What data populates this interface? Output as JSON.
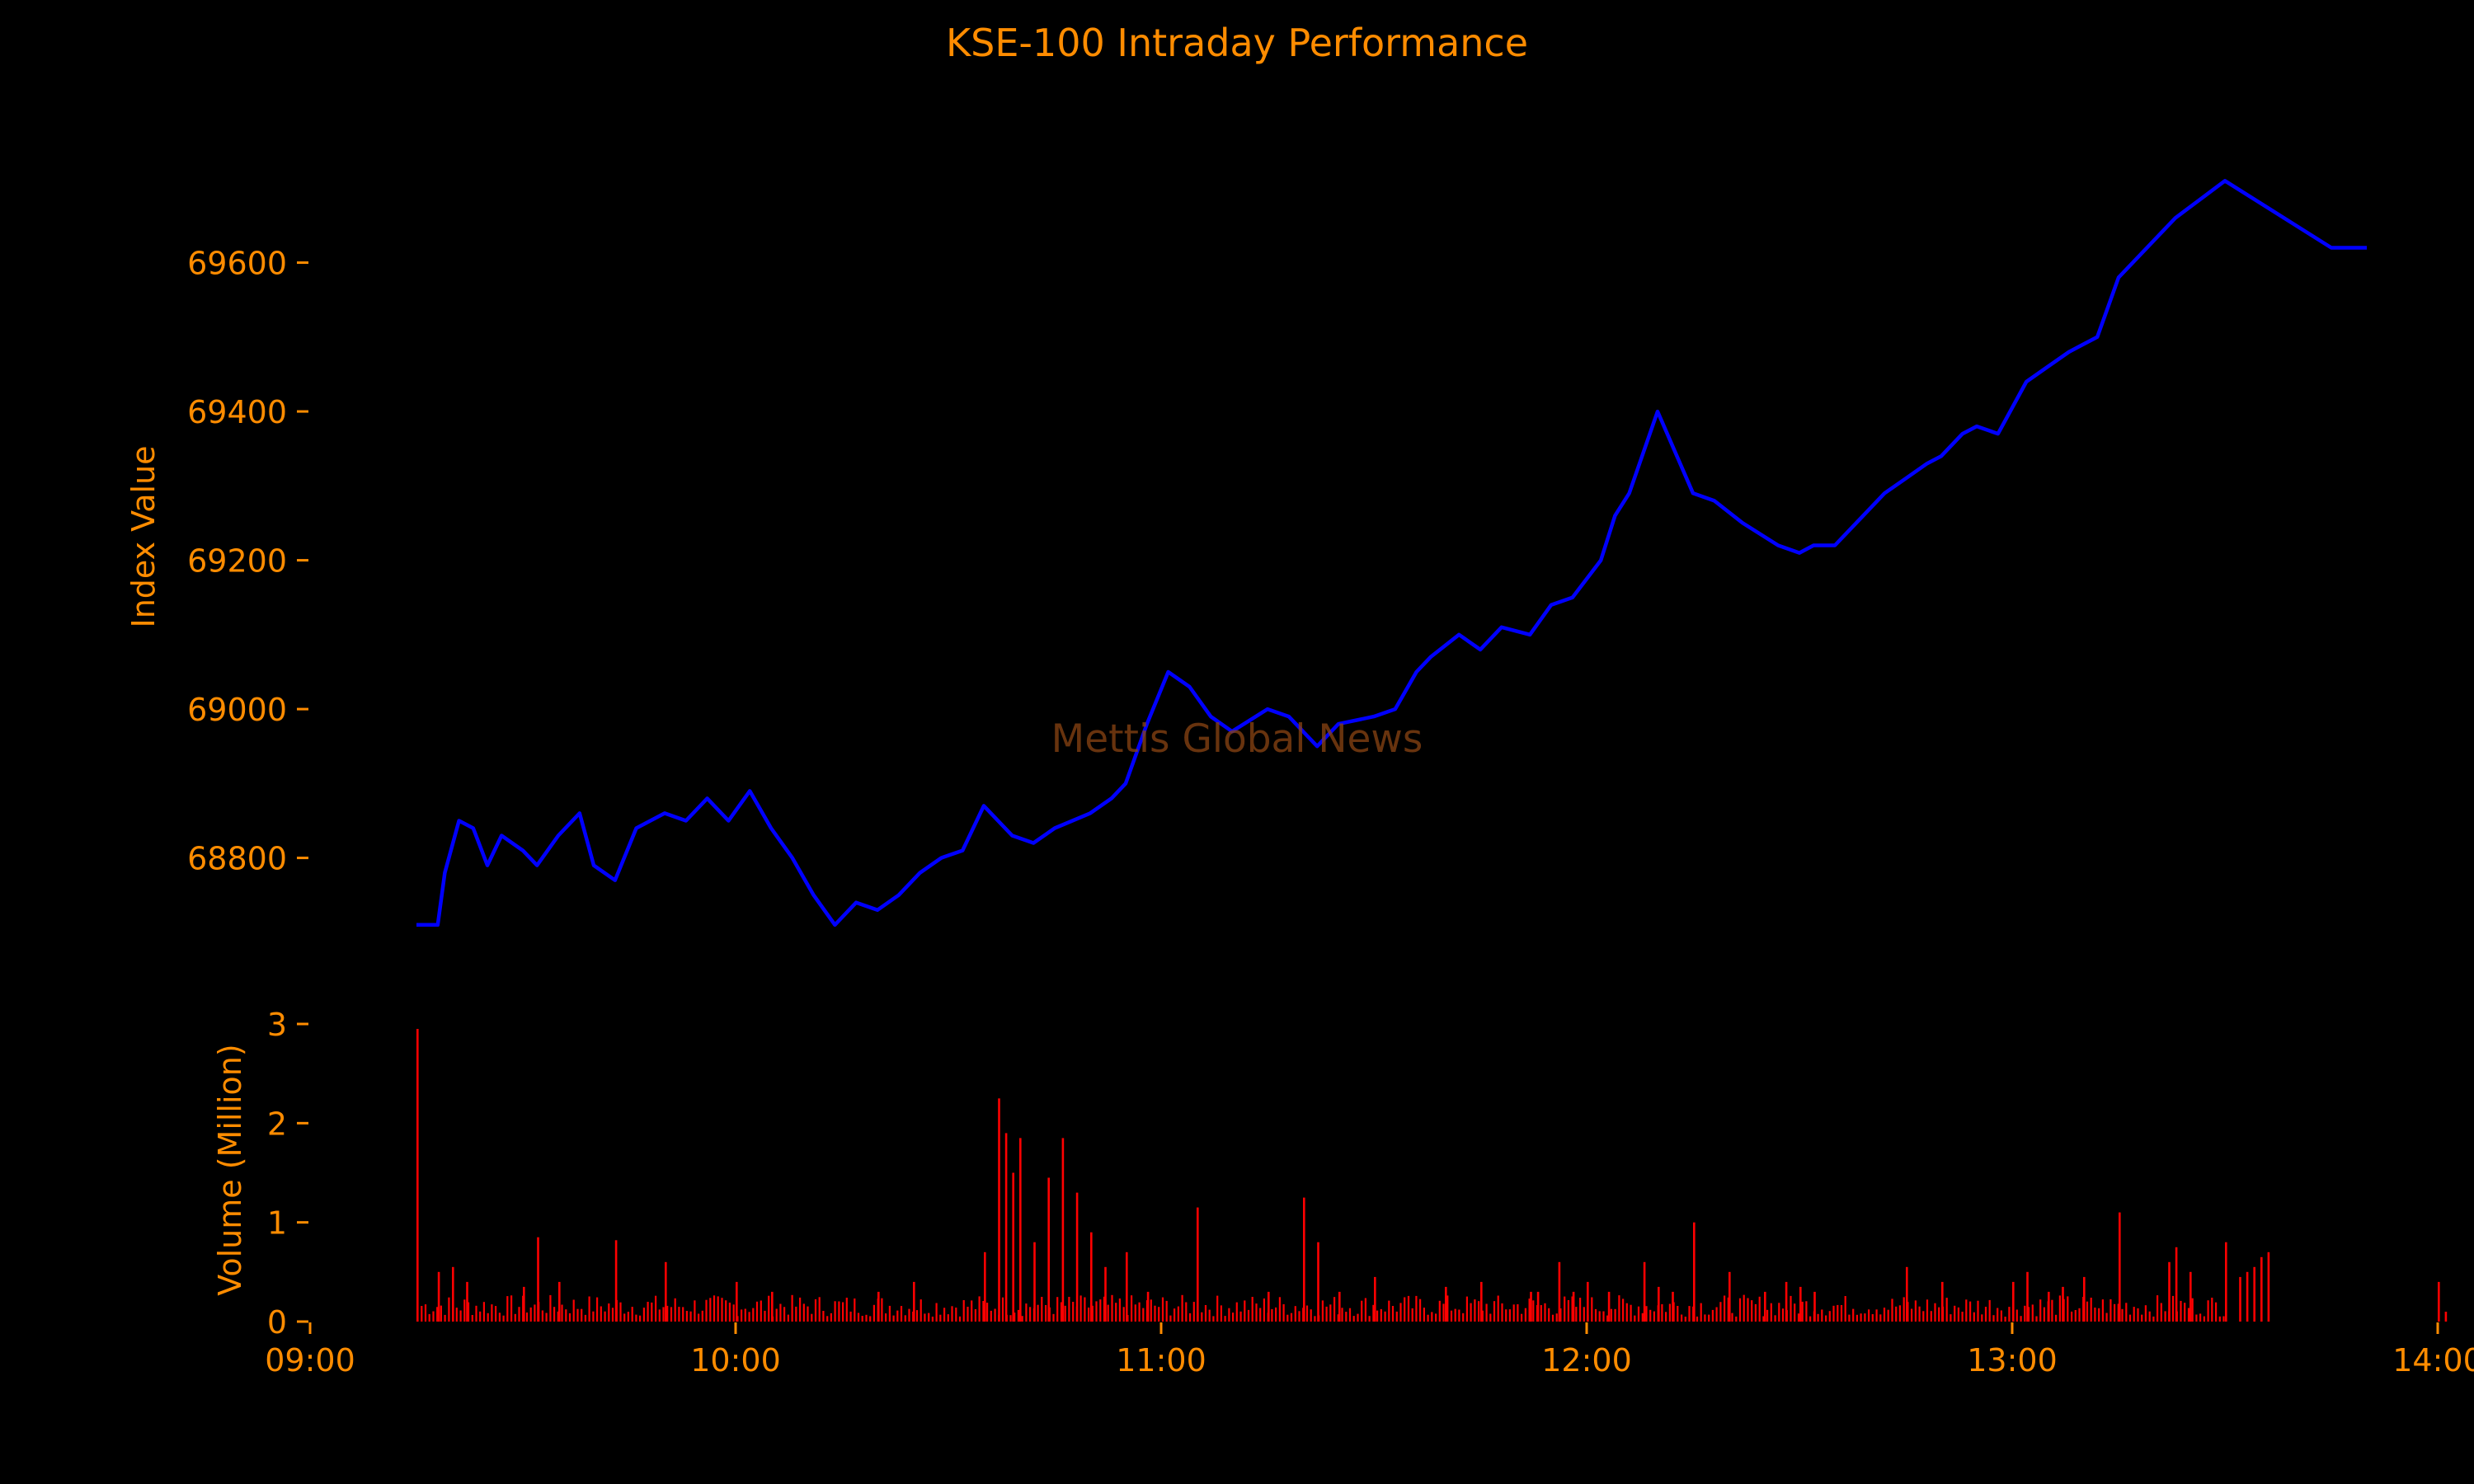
{
  "chart_data": {
    "type": "line",
    "title": "KSE-100 Intraday Performance",
    "watermark": "Mettis Global News",
    "colors": {
      "background": "#000000",
      "text": "#ff8c00",
      "index_line": "#0000ff",
      "volume_bars": "#ff0000",
      "watermark": "#8b4513"
    },
    "x_ticks": [
      "09:00",
      "10:00",
      "11:00",
      "12:00",
      "13:00",
      "14:00"
    ],
    "xlim_minutes_from_0900": [
      0,
      300
    ],
    "index_panel": {
      "ylabel": "Index Value",
      "yticks": [
        68800,
        69000,
        69200,
        69400,
        69600
      ],
      "ylim": [
        68640,
        69820
      ],
      "series": {
        "x_minutes_from_0900": [
          15,
          18,
          19,
          21,
          23,
          25,
          27,
          30,
          32,
          35,
          38,
          40,
          43,
          46,
          50,
          53,
          56,
          59,
          62,
          65,
          68,
          71,
          74,
          77,
          80,
          83,
          86,
          89,
          92,
          95,
          99,
          102,
          105,
          110,
          113,
          115,
          118,
          121,
          124,
          127,
          130,
          135,
          138,
          142,
          145,
          150,
          153,
          156,
          158,
          162,
          165,
          168,
          172,
          175,
          178,
          182,
          184,
          186,
          190,
          195,
          198,
          202,
          207,
          210,
          212,
          215,
          218,
          222,
          225,
          228,
          230,
          233,
          235,
          238,
          242,
          245,
          248,
          250,
          252,
          255,
          257,
          263,
          270,
          285,
          290
        ],
        "values": [
          68710,
          68710,
          68780,
          68850,
          68840,
          68790,
          68830,
          68810,
          68790,
          68830,
          68860,
          68790,
          68770,
          68840,
          68860,
          68850,
          68880,
          68850,
          68890,
          68840,
          68800,
          68750,
          68710,
          68740,
          68730,
          68750,
          68780,
          68800,
          68810,
          68870,
          68830,
          68820,
          68840,
          68860,
          68880,
          68900,
          68980,
          69050,
          69030,
          68990,
          68970,
          69000,
          68990,
          68950,
          68980,
          68990,
          69000,
          69050,
          69070,
          69100,
          69080,
          69110,
          69100,
          69140,
          69150,
          69200,
          69260,
          69290,
          69400,
          69290,
          69280,
          69250,
          69220,
          69210,
          69220,
          69220,
          69250,
          69290,
          69310,
          69330,
          69340,
          69370,
          69380,
          69370,
          69440,
          69460,
          69480,
          69490,
          69500,
          69580,
          69600,
          69660,
          69710,
          69620,
          69620
        ]
      }
    },
    "volume_panel": {
      "ylabel": "Volume (Million)",
      "yticks": [
        0,
        1,
        2,
        3
      ],
      "ylim": [
        0,
        3.05
      ],
      "spikes": {
        "x_minutes_from_0900": [
          15,
          18,
          20,
          22,
          30,
          32,
          35,
          43,
          50,
          60,
          65,
          80,
          85,
          95,
          97,
          98,
          99,
          100,
          102,
          104,
          106,
          108,
          110,
          112,
          115,
          118,
          125,
          135,
          140,
          142,
          145,
          150,
          160,
          165,
          172,
          173,
          176,
          178,
          180,
          183,
          188,
          190,
          192,
          195,
          200,
          205,
          208,
          210,
          212,
          225,
          230,
          240,
          242,
          245,
          247,
          250,
          255,
          262,
          263,
          265,
          270,
          272,
          273,
          274,
          275,
          276,
          300,
          301
        ],
        "values": [
          2.95,
          0.5,
          0.55,
          0.4,
          0.35,
          0.85,
          0.4,
          0.82,
          0.6,
          0.4,
          0.3,
          0.3,
          0.4,
          0.7,
          2.25,
          1.9,
          1.5,
          1.85,
          0.8,
          1.45,
          1.85,
          1.3,
          0.9,
          0.55,
          0.7,
          0.3,
          1.15,
          0.3,
          1.25,
          0.8,
          0.3,
          0.45,
          0.35,
          0.4,
          0.3,
          0.3,
          0.6,
          0.3,
          0.4,
          0.3,
          0.6,
          0.35,
          0.3,
          1.0,
          0.5,
          0.3,
          0.4,
          0.35,
          0.3,
          0.55,
          0.4,
          0.4,
          0.5,
          0.3,
          0.35,
          0.45,
          1.1,
          0.6,
          0.75,
          0.5,
          0.8,
          0.45,
          0.5,
          0.55,
          0.65,
          0.7,
          0.4,
          0.1
        ]
      }
    }
  }
}
